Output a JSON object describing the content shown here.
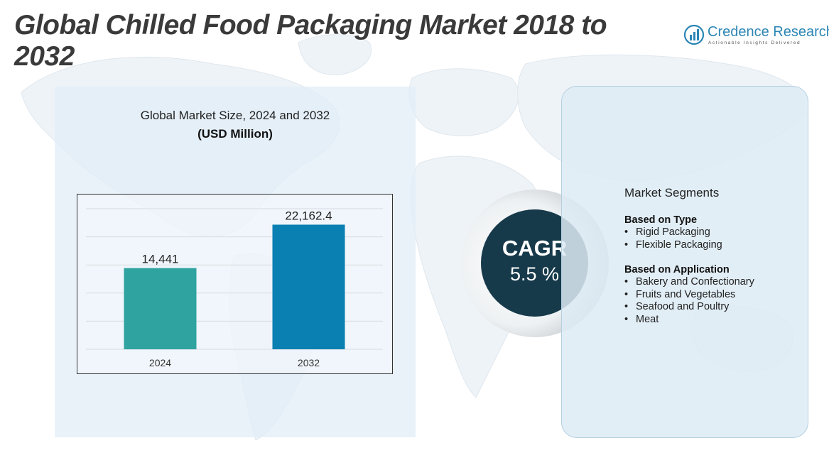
{
  "header": {
    "title": "Global Chilled Food Packaging Market 2018 to 2032"
  },
  "logo": {
    "name": "Credence Research",
    "tagline": "Actionable Insights Delivered",
    "icon": "bar-growth-logo-icon",
    "brand_color": "#2c86b5"
  },
  "chart_data": {
    "type": "bar",
    "title": "Global Market Size, 2024 and 2032",
    "subtitle": "(USD Million)",
    "categories": [
      "2024",
      "2032"
    ],
    "values": [
      14441,
      22162.4
    ],
    "value_labels": [
      "14,441",
      "22,162.4"
    ],
    "colors": [
      "#2fa39f",
      "#0a7fb2"
    ],
    "ylim": [
      0,
      25000
    ],
    "grid": true,
    "legend": "none"
  },
  "cagr": {
    "label": "CAGR",
    "value": "5.5 %",
    "color": "#173a4b"
  },
  "segments": {
    "title": "Market Segments",
    "groups": [
      {
        "heading": "Based on Type",
        "items": [
          "Rigid Packaging",
          "Flexible Packaging"
        ]
      },
      {
        "heading": "Based on Application",
        "items": [
          "Bakery and Confectionary",
          "Fruits and Vegetables",
          "Seafood and Poultry",
          "Meat"
        ]
      }
    ]
  }
}
